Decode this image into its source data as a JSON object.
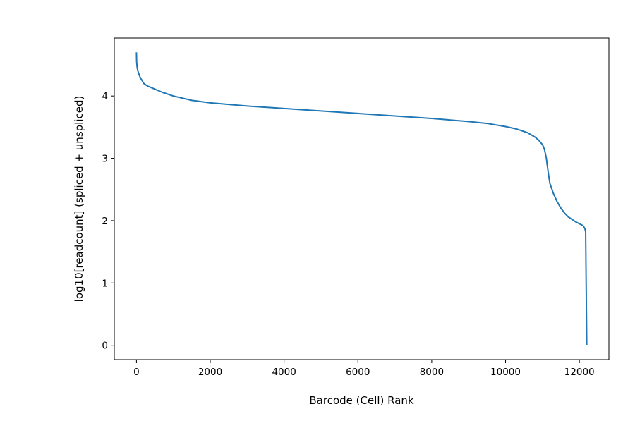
{
  "chart_data": {
    "type": "line",
    "title": "",
    "xlabel": "Barcode (Cell) Rank",
    "ylabel": "log10[readcount] (spliced + unspliced)",
    "xlim": [
      -600,
      12800
    ],
    "ylim": [
      -0.23,
      4.93
    ],
    "xticks": [
      0,
      2000,
      4000,
      6000,
      8000,
      10000,
      12000
    ],
    "yticks": [
      0,
      1,
      2,
      3,
      4
    ],
    "xtick_labels": [
      "0",
      "2000",
      "4000",
      "6000",
      "8000",
      "10000",
      "12000"
    ],
    "ytick_labels": [
      "0",
      "1",
      "2",
      "3",
      "4"
    ],
    "grid": false,
    "colors": {
      "line": "#1f77b4"
    },
    "series": [
      {
        "x": [
          0,
          5,
          20,
          50,
          100,
          150,
          200,
          300,
          500,
          700,
          1000,
          1500,
          2000,
          3000,
          4000,
          5000,
          6000,
          7000,
          8000,
          9000,
          9500,
          10000,
          10300,
          10600,
          10800,
          10900,
          11000,
          11050,
          11100,
          11150,
          11200,
          11300,
          11400,
          11500,
          11600,
          11700,
          11800,
          11900,
          12000,
          12100,
          12150,
          12170,
          12180,
          12190,
          12195,
          12200
        ],
        "y": [
          4.7,
          4.55,
          4.45,
          4.38,
          4.3,
          4.25,
          4.2,
          4.16,
          4.11,
          4.06,
          4.0,
          3.93,
          3.89,
          3.84,
          3.8,
          3.76,
          3.72,
          3.68,
          3.64,
          3.59,
          3.56,
          3.51,
          3.47,
          3.41,
          3.34,
          3.29,
          3.22,
          3.15,
          3.02,
          2.8,
          2.6,
          2.43,
          2.3,
          2.2,
          2.12,
          2.06,
          2.02,
          1.98,
          1.95,
          1.92,
          1.87,
          1.82,
          1.2,
          0.6,
          0.3,
          0.0
        ]
      }
    ]
  }
}
